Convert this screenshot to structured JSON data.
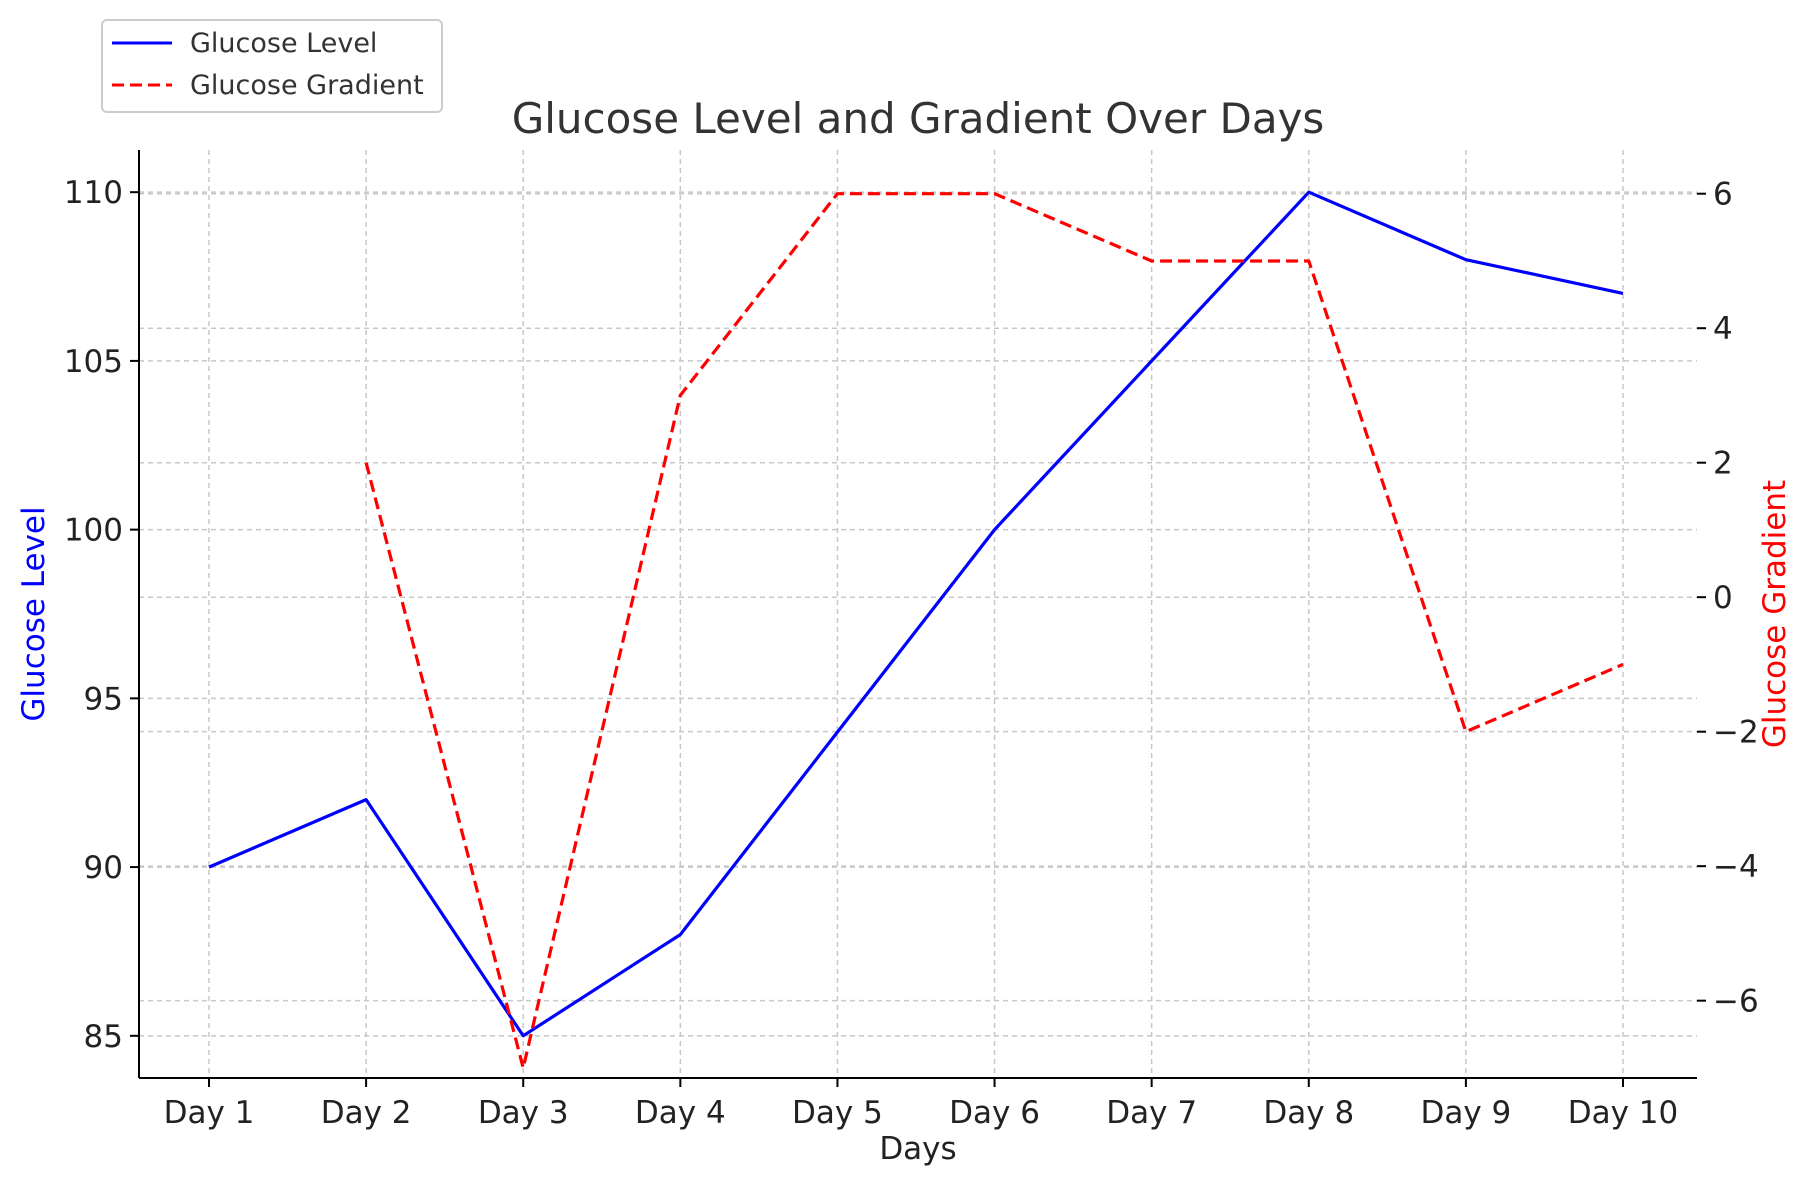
{
  "chart_data": {
    "type": "line",
    "title": "Glucose Level and Gradient Over Days",
    "xlabel": "Days",
    "ylabel": "Glucose Level",
    "y2label": "Glucose Gradient",
    "categories": [
      "Day 1",
      "Day 2",
      "Day 3",
      "Day 4",
      "Day 5",
      "Day 6",
      "Day 7",
      "Day 8",
      "Day 9",
      "Day 10"
    ],
    "ylim": [
      83.75,
      111.25
    ],
    "y2lim": [
      -7.15,
      6.65
    ],
    "yticks": [
      85,
      90,
      95,
      100,
      105,
      110
    ],
    "y2ticks": [
      -6,
      -4,
      -2,
      0,
      2,
      4,
      6
    ],
    "grid": true,
    "legend_position": "top-left",
    "series": [
      {
        "name": "Glucose Level",
        "axis": "left",
        "color": "#0000ff",
        "style": "solid",
        "values": [
          90,
          92,
          85,
          88,
          94,
          100,
          105,
          110,
          108,
          107
        ]
      },
      {
        "name": "Glucose Gradient",
        "axis": "right",
        "color": "#ff0000",
        "style": "dashed",
        "values": [
          null,
          2,
          -7,
          3,
          6,
          6,
          5,
          5,
          -2,
          -1
        ]
      }
    ]
  }
}
